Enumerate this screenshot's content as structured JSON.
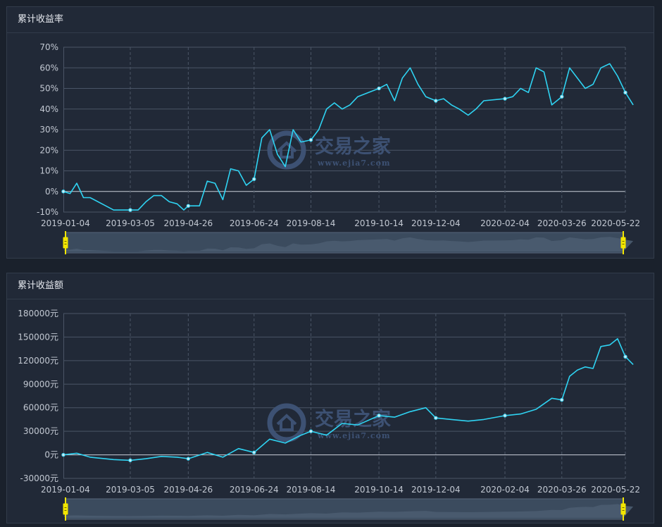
{
  "charts": [
    {
      "panel_title": "累计收益率",
      "y_tick_labels": [
        "70%",
        "60%",
        "50%",
        "40%",
        "30%",
        "20%",
        "10%",
        "0%",
        "-10%"
      ],
      "x_tick_labels": [
        "2019-01-04",
        "2019-03-05",
        "2019-04-26",
        "2019-06-24",
        "2019-08-14",
        "2019-10-14",
        "2019-12-04",
        "2020-02-04",
        "2020-03-26",
        "2020-05-22"
      ]
    },
    {
      "panel_title": "累计收益额",
      "y_tick_labels": [
        "180000元",
        "150000元",
        "120000元",
        "90000元",
        "60000元",
        "30000元",
        "0元",
        "-30000元"
      ],
      "x_tick_labels": [
        "2019-01-04",
        "2019-03-05",
        "2019-04-26",
        "2019-06-24",
        "2019-08-14",
        "2019-10-14",
        "2019-12-04",
        "2020-02-04",
        "2020-03-26",
        "2020-05-22"
      ]
    }
  ],
  "watermark": {
    "name": "交易之家",
    "url": "www.ejia7.com"
  },
  "colors": {
    "line": "#2fd3f2",
    "grid": "#4a5566",
    "zero_line": "#c9cfd8",
    "slider_handle": "#f2e600"
  },
  "chart_data": [
    {
      "type": "line",
      "title": "累计收益率",
      "y_unit": "%",
      "ylim": [
        -10,
        70
      ],
      "x_ticks": [
        "2019-01-04",
        "2019-03-05",
        "2019-04-26",
        "2019-06-24",
        "2019-08-14",
        "2019-10-14",
        "2019-12-04",
        "2020-02-04",
        "2020-03-26",
        "2020-05-22"
      ],
      "x": [
        "2019-01-04",
        "2019-01-10",
        "2019-01-16",
        "2019-01-22",
        "2019-01-28",
        "2019-02-11",
        "2019-02-18",
        "2019-02-25",
        "2019-03-05",
        "2019-03-12",
        "2019-03-19",
        "2019-03-26",
        "2019-04-02",
        "2019-04-09",
        "2019-04-16",
        "2019-04-22",
        "2019-04-26",
        "2019-05-06",
        "2019-05-13",
        "2019-05-20",
        "2019-05-27",
        "2019-06-03",
        "2019-06-10",
        "2019-06-17",
        "2019-06-24",
        "2019-07-01",
        "2019-07-08",
        "2019-07-15",
        "2019-07-22",
        "2019-07-29",
        "2019-08-05",
        "2019-08-14",
        "2019-08-21",
        "2019-08-28",
        "2019-09-04",
        "2019-09-11",
        "2019-09-18",
        "2019-09-25",
        "2019-10-14",
        "2019-10-21",
        "2019-10-28",
        "2019-11-04",
        "2019-11-11",
        "2019-11-18",
        "2019-11-25",
        "2019-12-04",
        "2019-12-11",
        "2019-12-18",
        "2019-12-25",
        "2020-01-02",
        "2020-01-09",
        "2020-01-16",
        "2020-02-04",
        "2020-02-11",
        "2020-02-18",
        "2020-02-25",
        "2020-03-03",
        "2020-03-10",
        "2020-03-17",
        "2020-03-26",
        "2020-04-02",
        "2020-04-09",
        "2020-04-16",
        "2020-04-23",
        "2020-04-30",
        "2020-05-08",
        "2020-05-15",
        "2020-05-22",
        "2020-05-29"
      ],
      "series": [
        {
          "values": [
            0,
            -1,
            4,
            -3,
            -3,
            -7,
            -9,
            -9,
            -9,
            -9,
            -5,
            -2,
            -2,
            -5,
            -6,
            -9,
            -7,
            -7,
            5,
            4,
            -4,
            11,
            10,
            3,
            6,
            26,
            30,
            18,
            12,
            30,
            24,
            25,
            30,
            40,
            43,
            40,
            42,
            46,
            50,
            52,
            44,
            55,
            60,
            52,
            46,
            44,
            45,
            42,
            40,
            37,
            40,
            44,
            45,
            46,
            50,
            48,
            60,
            58,
            42,
            46,
            60,
            55,
            50,
            52,
            60,
            62,
            56,
            48,
            42
          ]
        }
      ]
    },
    {
      "type": "line",
      "title": "累计收益额",
      "y_unit": "元",
      "ylim": [
        -30000,
        180000
      ],
      "x_ticks": [
        "2019-01-04",
        "2019-03-05",
        "2019-04-26",
        "2019-06-24",
        "2019-08-14",
        "2019-10-14",
        "2019-12-04",
        "2020-02-04",
        "2020-03-26",
        "2020-05-22"
      ],
      "x": [
        "2019-01-04",
        "2019-01-16",
        "2019-01-28",
        "2019-02-18",
        "2019-03-05",
        "2019-03-19",
        "2019-04-02",
        "2019-04-16",
        "2019-04-26",
        "2019-05-13",
        "2019-05-27",
        "2019-06-10",
        "2019-06-24",
        "2019-07-08",
        "2019-07-22",
        "2019-08-05",
        "2019-08-14",
        "2019-08-28",
        "2019-09-11",
        "2019-09-25",
        "2019-10-14",
        "2019-10-28",
        "2019-11-11",
        "2019-11-25",
        "2019-12-04",
        "2019-12-18",
        "2020-01-02",
        "2020-01-16",
        "2020-02-04",
        "2020-02-18",
        "2020-03-03",
        "2020-03-17",
        "2020-03-26",
        "2020-04-02",
        "2020-04-09",
        "2020-04-16",
        "2020-04-23",
        "2020-04-30",
        "2020-05-08",
        "2020-05-15",
        "2020-05-22",
        "2020-05-29"
      ],
      "series": [
        {
          "values": [
            0,
            2000,
            -3000,
            -6000,
            -7000,
            -5000,
            -2000,
            -3000,
            -5000,
            3000,
            -3000,
            8000,
            3000,
            20000,
            15000,
            25000,
            30000,
            25000,
            40000,
            38000,
            50000,
            48000,
            55000,
            60000,
            47000,
            45000,
            43000,
            45000,
            50000,
            52000,
            58000,
            72000,
            70000,
            100000,
            108000,
            112000,
            110000,
            138000,
            140000,
            148000,
            125000,
            115000
          ]
        }
      ]
    }
  ]
}
